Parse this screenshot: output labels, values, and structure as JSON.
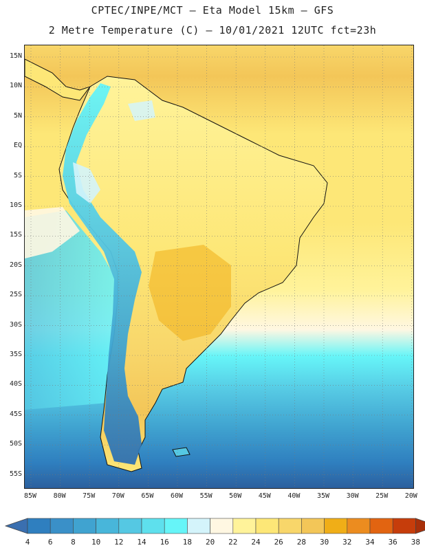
{
  "title": {
    "line1": "CPTEC/INPE/MCT –  Eta Model 15km – GFS",
    "line2": "2 Metre Temperature (C) – 10/01/2021 12UTC fct=23h"
  },
  "lat_labels": [
    "15N",
    "10N",
    "5N",
    "EQ",
    "5S",
    "10S",
    "15S",
    "20S",
    "25S",
    "30S",
    "35S",
    "40S",
    "45S",
    "50S",
    "55S"
  ],
  "lon_labels": [
    "85W",
    "80W",
    "75W",
    "70W",
    "65W",
    "60W",
    "55W",
    "50W",
    "45W",
    "40W",
    "35W",
    "30W",
    "25W",
    "20W"
  ],
  "colorbar": {
    "labels": [
      "4",
      "6",
      "8",
      "10",
      "12",
      "14",
      "16",
      "18",
      "20",
      "22",
      "24",
      "26",
      "28",
      "30",
      "32",
      "34",
      "36",
      "38"
    ],
    "colors": [
      "#3a6fb0",
      "#2f7fbf",
      "#3a90c8",
      "#40a3d0",
      "#48b6da",
      "#55c8e3",
      "#5ee0ed",
      "#66f5f8",
      "#d4f4fb",
      "#fff7e2",
      "#fff39a",
      "#fde777",
      "#f8d66a",
      "#f3c658",
      "#f0ae17",
      "#ec8c1f",
      "#e26411",
      "#c63d0b",
      "#a8300a"
    ]
  },
  "legend": {
    "ocean_north": "#fde777",
    "ocean_south": "#2c5e9c",
    "land_warm": "#f8d66a",
    "andes_cold": "#3a90c8",
    "coast_line": "#111111"
  }
}
